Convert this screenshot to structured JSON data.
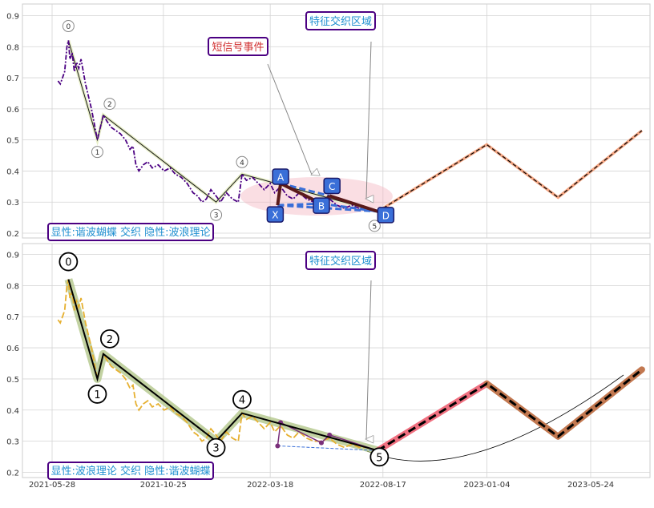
{
  "chart_data": [
    {
      "type": "line",
      "panel": "top",
      "ylim": [
        0.19,
        0.93
      ],
      "yticks": [
        0.2,
        0.3,
        0.4,
        0.5,
        0.6,
        0.7,
        0.8,
        0.9
      ],
      "ytick_labels": [
        "0.2",
        "0.3",
        "0.4",
        "0.5",
        "0.6",
        "0.7",
        "0.8",
        "0.9"
      ],
      "grid": true,
      "colors": {
        "price": "#4b0082",
        "wave": "#1a1a1a",
        "wave_fill": "#e8efc8",
        "harmonic": "#3a6fd8",
        "projection": "#f4a582",
        "highlight_ellipse": "#f4b6c0",
        "label_box_border": "#4b0082",
        "label_text": "#1f8fd0",
        "label_text_red": "#d03030",
        "pattern_point_fill": "#3a6fd8"
      },
      "price_series": [
        [
          "2021-06-05",
          0.69
        ],
        [
          "2021-06-08",
          0.68
        ],
        [
          "2021-06-11",
          0.7
        ],
        [
          "2021-06-14",
          0.72
        ],
        [
          "2021-06-17",
          0.8
        ],
        [
          "2021-06-19",
          0.82
        ],
        [
          "2021-06-21",
          0.76
        ],
        [
          "2021-06-24",
          0.78
        ],
        [
          "2021-06-27",
          0.72
        ],
        [
          "2021-06-30",
          0.75
        ],
        [
          "2021-07-03",
          0.73
        ],
        [
          "2021-07-06",
          0.76
        ],
        [
          "2021-07-09",
          0.72
        ],
        [
          "2021-07-12",
          0.68
        ],
        [
          "2021-07-16",
          0.64
        ],
        [
          "2021-07-20",
          0.6
        ],
        [
          "2021-07-24",
          0.55
        ],
        [
          "2021-07-28",
          0.5
        ],
        [
          "2021-08-01",
          0.54
        ],
        [
          "2021-08-05",
          0.58
        ],
        [
          "2021-08-10",
          0.56
        ],
        [
          "2021-08-16",
          0.54
        ],
        [
          "2021-08-22",
          0.53
        ],
        [
          "2021-08-28",
          0.52
        ],
        [
          "2021-09-04",
          0.5
        ],
        [
          "2021-09-10",
          0.47
        ],
        [
          "2021-09-14",
          0.48
        ],
        [
          "2021-09-18",
          0.42
        ],
        [
          "2021-09-22",
          0.4
        ],
        [
          "2021-09-28",
          0.42
        ],
        [
          "2021-10-04",
          0.43
        ],
        [
          "2021-10-10",
          0.41
        ],
        [
          "2021-10-18",
          0.42
        ],
        [
          "2021-10-26",
          0.4
        ],
        [
          "2021-11-03",
          0.41
        ],
        [
          "2021-11-10",
          0.39
        ],
        [
          "2021-11-18",
          0.38
        ],
        [
          "2021-11-26",
          0.36
        ],
        [
          "2021-12-04",
          0.33
        ],
        [
          "2021-12-10",
          0.32
        ],
        [
          "2021-12-16",
          0.3
        ],
        [
          "2021-12-22",
          0.31
        ],
        [
          "2021-12-28",
          0.34
        ],
        [
          "2022-01-04",
          0.32
        ],
        [
          "2022-01-10",
          0.3
        ],
        [
          "2022-01-18",
          0.33
        ],
        [
          "2022-01-26",
          0.31
        ],
        [
          "2022-02-03",
          0.3
        ],
        [
          "2022-02-08",
          0.39
        ],
        [
          "2022-02-14",
          0.37
        ],
        [
          "2022-02-22",
          0.38
        ],
        [
          "2022-03-02",
          0.36
        ],
        [
          "2022-03-10",
          0.34
        ],
        [
          "2022-03-18",
          0.36
        ],
        [
          "2022-03-24",
          0.33
        ],
        [
          "2022-04-01",
          0.35
        ],
        [
          "2022-04-10",
          0.32
        ],
        [
          "2022-04-18",
          0.31
        ],
        [
          "2022-04-26",
          0.33
        ],
        [
          "2022-05-06",
          0.31
        ],
        [
          "2022-05-16",
          0.3
        ],
        [
          "2022-05-26",
          0.3
        ],
        [
          "2022-06-06",
          0.31
        ],
        [
          "2022-06-16",
          0.29
        ],
        [
          "2022-06-26",
          0.28
        ],
        [
          "2022-07-06",
          0.29
        ],
        [
          "2022-07-16",
          0.28
        ],
        [
          "2022-07-26",
          0.28
        ],
        [
          "2022-08-05",
          0.27
        ]
      ],
      "wave_points": [
        {
          "label": "0",
          "date": "2021-06-19",
          "value": 0.82
        },
        {
          "label": "1",
          "date": "2021-07-28",
          "value": 0.5
        },
        {
          "label": "2",
          "date": "2021-08-05",
          "value": 0.58
        },
        {
          "label": "3",
          "date": "2022-01-04",
          "value": 0.3
        },
        {
          "label": "4",
          "date": "2022-02-08",
          "value": 0.39
        },
        {
          "label": "5",
          "date": "2022-08-10",
          "value": 0.27
        }
      ],
      "harmonic_points": [
        {
          "label": "X",
          "date": "2022-03-28",
          "value": 0.29
        },
        {
          "label": "A",
          "date": "2022-04-01",
          "value": 0.36
        },
        {
          "label": "B",
          "date": "2022-05-26",
          "value": 0.295
        },
        {
          "label": "C",
          "date": "2022-06-06",
          "value": 0.32
        },
        {
          "label": "D",
          "date": "2022-08-10",
          "value": 0.27
        }
      ],
      "projection_points": [
        [
          "2022-08-10",
          0.27
        ],
        [
          "2023-01-04",
          0.485
        ],
        [
          "2023-04-10",
          0.315
        ],
        [
          "2023-08-01",
          0.53
        ]
      ],
      "annotations": {
        "feature_zone": "特征交织区域",
        "short_signal": "短信号事件",
        "panel_label": "显性:谐波蝴蝶 交织 隐性:波浪理论"
      }
    },
    {
      "type": "line",
      "panel": "bottom",
      "ylim": [
        0.19,
        0.93
      ],
      "yticks": [
        0.2,
        0.3,
        0.4,
        0.5,
        0.6,
        0.7,
        0.8,
        0.9
      ],
      "ytick_labels": [
        "0.2",
        "0.3",
        "0.4",
        "0.5",
        "0.6",
        "0.7",
        "0.8",
        "0.9"
      ],
      "xticks": [
        "2021-05-28",
        "2021-10-25",
        "2022-03-18",
        "2022-08-17",
        "2023-01-04",
        "2023-05-24"
      ],
      "grid": true,
      "colors": {
        "price": "#e6b030",
        "wave": "#000000",
        "wave_glow": "#a8bf7a",
        "harmonic": "#3a6fd8",
        "harmonic_points": "#7a2f7a",
        "projection_red": "#f07080",
        "projection_brown": "#c27850",
        "projection_dash": "#000000",
        "arc": "#000000"
      },
      "harmonic_points": [
        [
          "2022-03-28",
          0.285
        ],
        [
          "2022-04-01",
          0.36
        ],
        [
          "2022-05-26",
          0.295
        ],
        [
          "2022-06-06",
          0.32
        ],
        [
          "2022-08-10",
          0.27
        ]
      ],
      "annotations": {
        "feature_zone": "特征交织区域",
        "panel_label": "显性:波浪理论 交织 隐性:谐波蝴蝶"
      }
    }
  ]
}
